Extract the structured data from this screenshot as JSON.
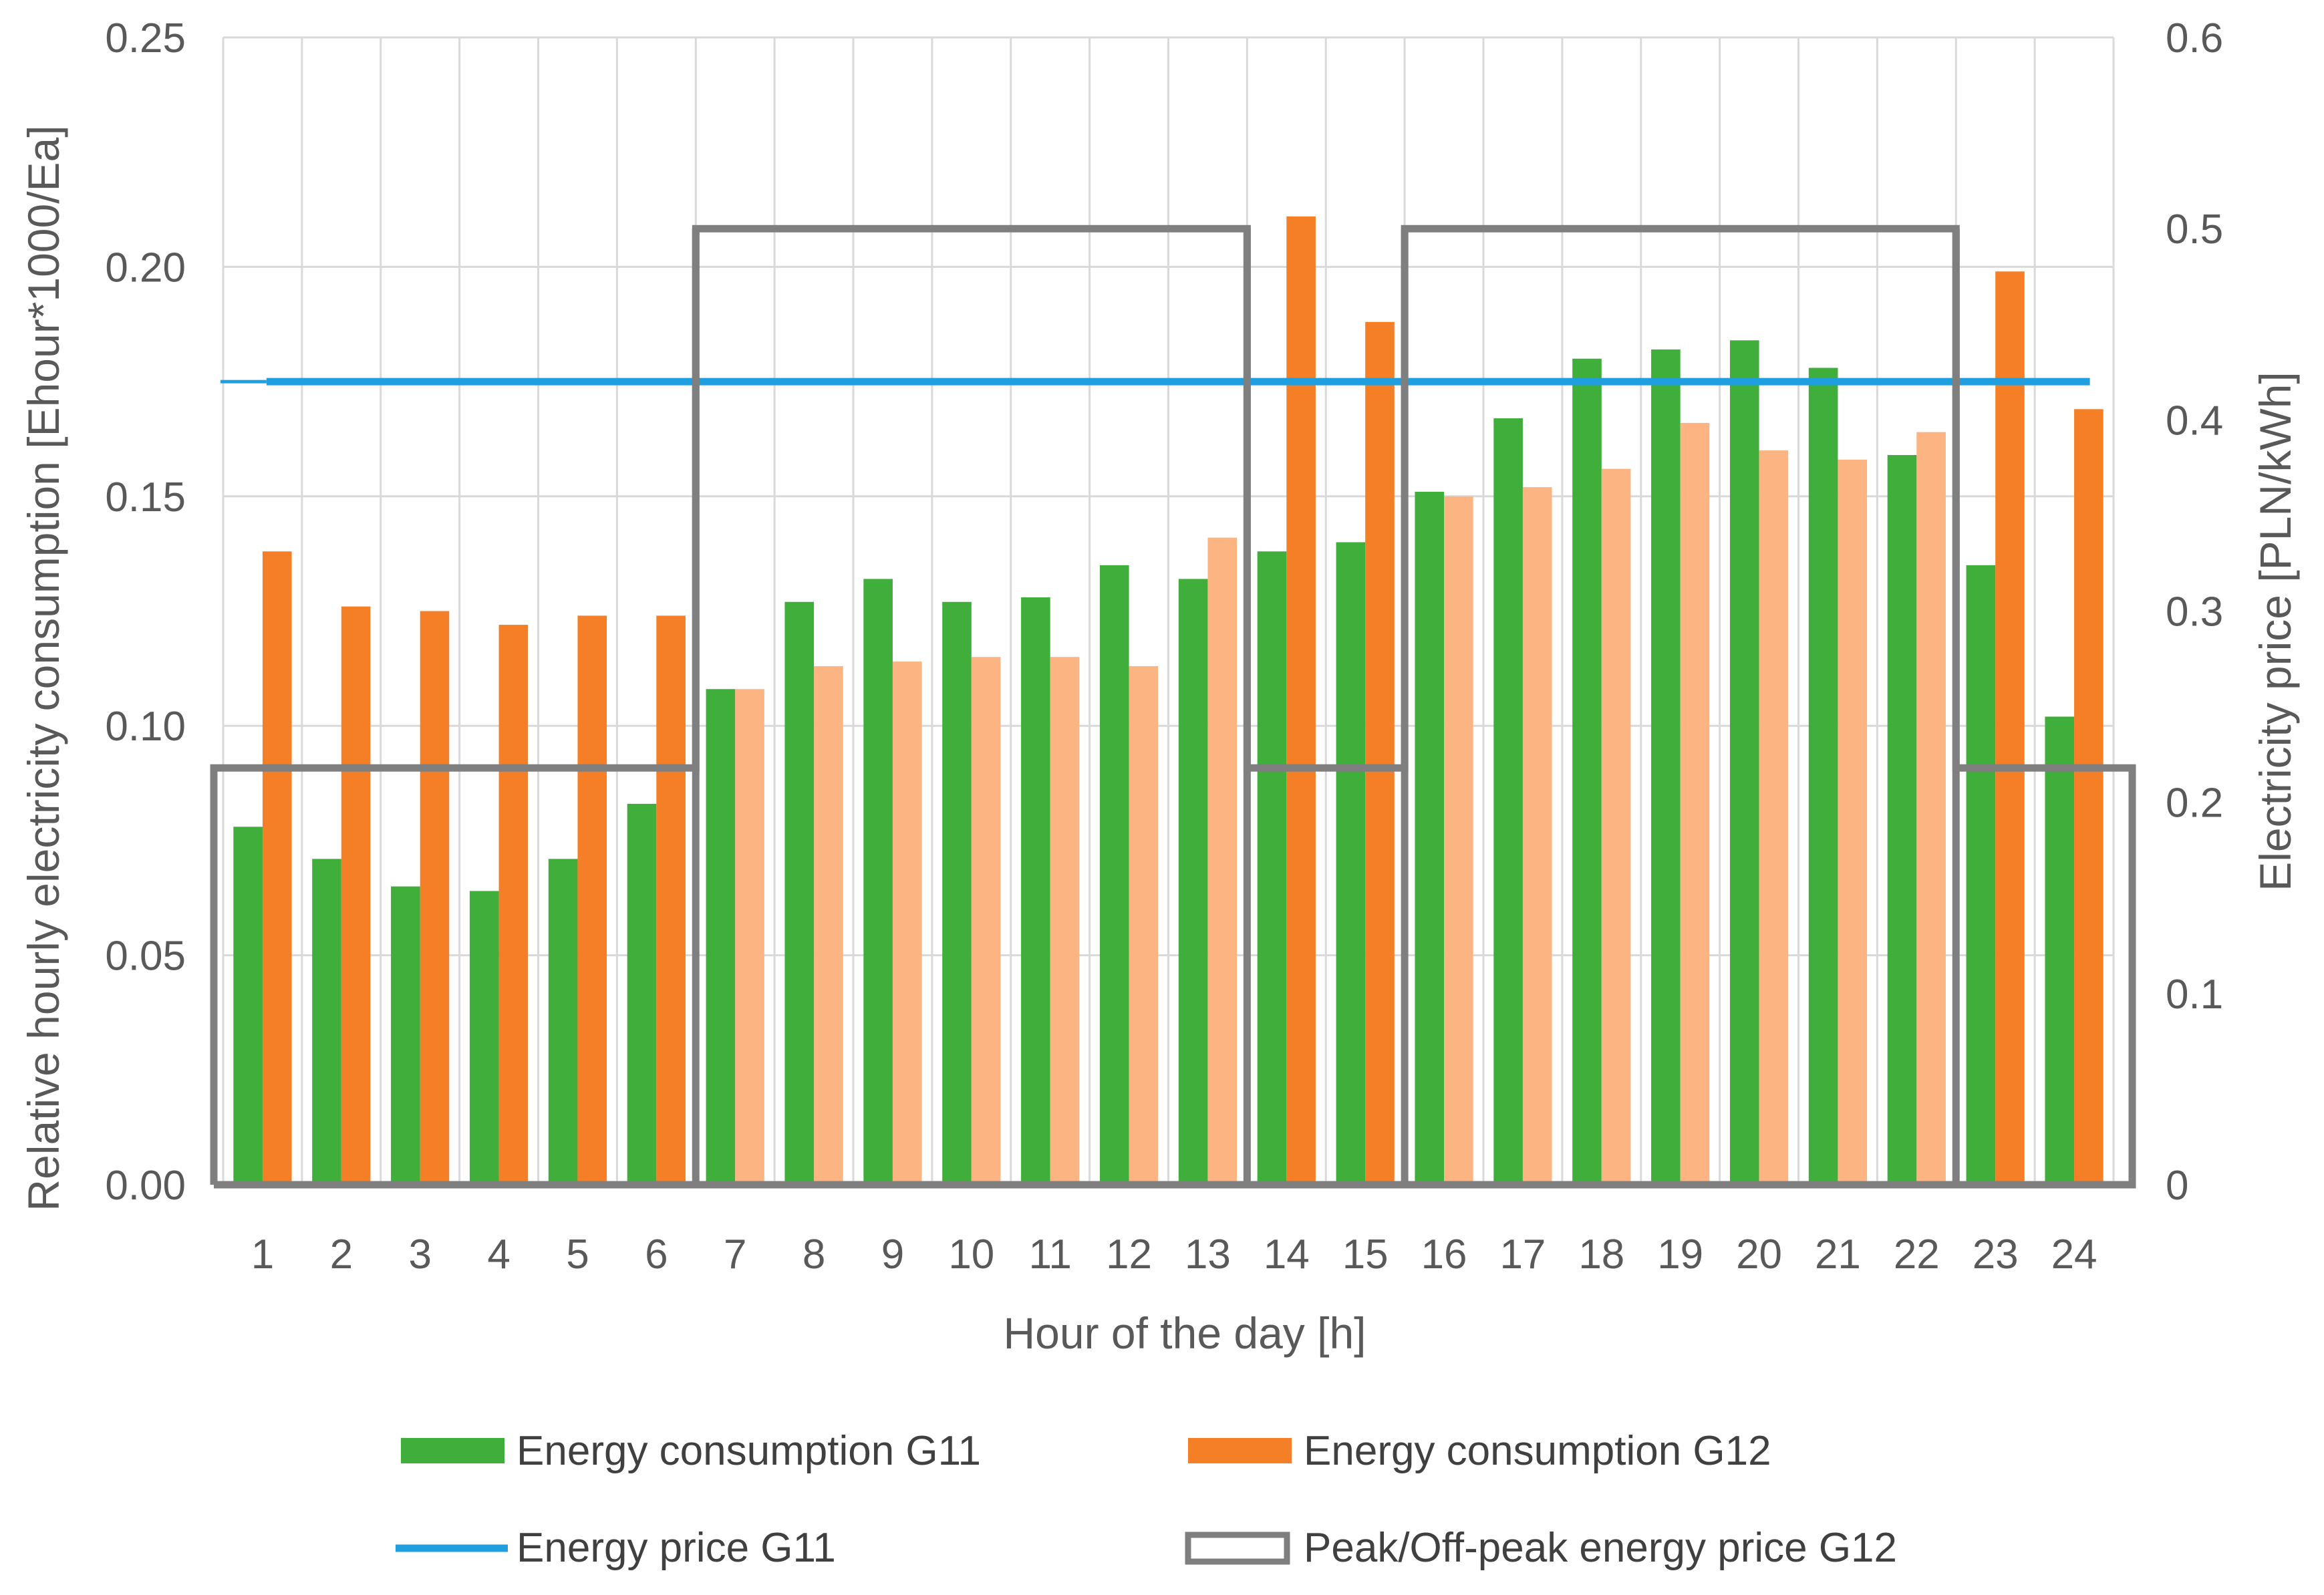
{
  "chart_data": {
    "type": "bar",
    "xlabel": "Hour of the day [h]",
    "ylabel": "Relative hourly electricity consumption [Ehour*1000/Ea]",
    "y2label": "Electricity price [PLN/kWh]",
    "ylim": [
      0,
      0.25
    ],
    "y2lim": [
      0,
      0.6
    ],
    "yticks": [
      "0.00",
      "0.05",
      "0.10",
      "0.15",
      "0.20",
      "0.25"
    ],
    "y2ticks": [
      "0",
      "0.1",
      "0.2",
      "0.3",
      "0.4",
      "0.5",
      "0.6"
    ],
    "categories": [
      "1",
      "2",
      "3",
      "4",
      "5",
      "6",
      "7",
      "8",
      "9",
      "10",
      "11",
      "12",
      "13",
      "14",
      "15",
      "16",
      "17",
      "18",
      "19",
      "20",
      "21",
      "22",
      "23",
      "24"
    ],
    "grid": true,
    "legend_position": "bottom",
    "series": [
      {
        "name": "Energy consumption G11",
        "axis": "left",
        "kind": "bar",
        "color": "#3fae3a",
        "values": [
          0.078,
          0.071,
          0.065,
          0.064,
          0.071,
          0.083,
          0.108,
          0.127,
          0.132,
          0.127,
          0.128,
          0.135,
          0.132,
          0.138,
          0.14,
          0.151,
          0.167,
          0.18,
          0.182,
          0.184,
          0.178,
          0.159,
          0.135,
          0.102
        ]
      },
      {
        "name": "Energy consumption G12",
        "axis": "left",
        "kind": "bar",
        "color": "#f47f27",
        "peak_color": "#fbb482",
        "values": [
          0.138,
          0.126,
          0.125,
          0.122,
          0.124,
          0.124,
          0.108,
          0.113,
          0.114,
          0.115,
          0.115,
          0.113,
          0.141,
          0.211,
          0.188,
          0.15,
          0.152,
          0.156,
          0.166,
          0.16,
          0.158,
          0.164,
          0.199,
          0.169
        ]
      },
      {
        "name": "Energy price G11",
        "axis": "right",
        "kind": "line",
        "color": "#1f9ee0",
        "value": 0.42
      },
      {
        "name": "Peak/Off-peak energy price G12",
        "axis": "right",
        "kind": "step",
        "color": "#7f7f7f",
        "offpeak_price": 0.218,
        "peak_price": 0.5,
        "peak_hours": [
          7,
          8,
          9,
          10,
          11,
          12,
          13,
          16,
          17,
          18,
          19,
          20,
          21,
          22
        ]
      }
    ]
  }
}
